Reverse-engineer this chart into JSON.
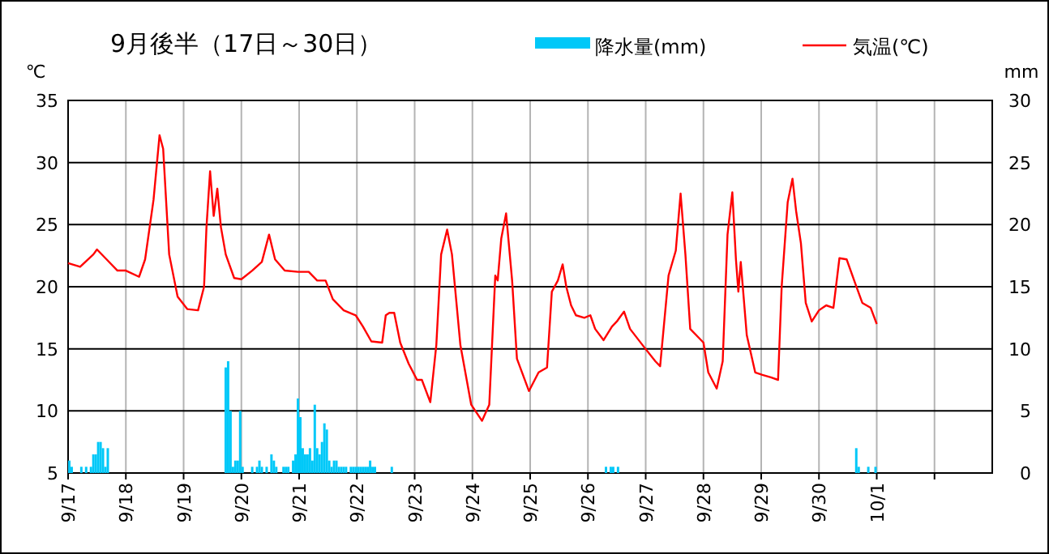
{
  "chart_data": {
    "type": "line",
    "title": "9月後半（17日～30日）",
    "ylabel": "℃",
    "y2label": "mm",
    "legend": "top",
    "grid": true,
    "xlim": [
      "--09-17",
      "--10-03"
    ],
    "xticks": [
      {
        "value": "--09-17",
        "label": "9/17"
      },
      {
        "value": "--09-18",
        "label": "9/18"
      },
      {
        "value": "--09-19",
        "label": "9/19"
      },
      {
        "value": "--09-20",
        "label": "9/20"
      },
      {
        "value": "--09-21",
        "label": "9/21"
      },
      {
        "value": "--09-22",
        "label": "9/22"
      },
      {
        "value": "--09-23",
        "label": "9/23"
      },
      {
        "value": "--09-24",
        "label": "9/24"
      },
      {
        "value": "--09-25",
        "label": "9/25"
      },
      {
        "value": "--09-26",
        "label": "9/26"
      },
      {
        "value": "--09-27",
        "label": "9/27"
      },
      {
        "value": "--09-28",
        "label": "9/28"
      },
      {
        "value": "--09-29",
        "label": "9/29"
      },
      {
        "value": "--09-30",
        "label": "9/30"
      },
      {
        "value": "--10-01",
        "label": "10/1"
      },
      {
        "value": "--10-02",
        "label": null
      }
    ],
    "ylim": [
      5,
      35
    ],
    "yticks": [
      5,
      10,
      15,
      20,
      25,
      30,
      35
    ],
    "y2lim": [
      0,
      30
    ],
    "y2ticks": [
      0,
      5,
      10,
      15,
      20,
      25,
      30
    ],
    "series": [
      {
        "name": "降水量(mm)",
        "type": "bar",
        "axis": "y2",
        "color": "#00c8f8",
        "x": [
          "--09-17T00:00",
          "--09-17T01:00",
          "--09-17T05:00",
          "--09-17T07:00",
          "--09-17T09:00",
          "--09-17T10:00",
          "--09-17T11:00",
          "--09-17T12:00",
          "--09-17T13:00",
          "--09-17T14:00",
          "--09-17T15:00",
          "--09-17T16:00",
          "--09-19T17:00",
          "--09-19T18:00",
          "--09-19T19:00",
          "--09-19T20:00",
          "--09-19T21:00",
          "--09-19T22:00",
          "--09-19T23:00",
          "--09-20T00:00",
          "--09-20T04:00",
          "--09-20T06:00",
          "--09-20T07:00",
          "--09-20T08:00",
          "--09-20T10:00",
          "--09-20T12:00",
          "--09-20T13:00",
          "--09-20T14:00",
          "--09-20T17:00",
          "--09-20T18:00",
          "--09-20T19:00",
          "--09-20T21:00",
          "--09-20T22:00",
          "--09-20T23:00",
          "--09-21T00:00",
          "--09-21T01:00",
          "--09-21T02:00",
          "--09-21T03:00",
          "--09-21T04:00",
          "--09-21T05:00",
          "--09-21T06:00",
          "--09-21T07:00",
          "--09-21T08:00",
          "--09-21T09:00",
          "--09-21T10:00",
          "--09-21T11:00",
          "--09-21T12:00",
          "--09-21T13:00",
          "--09-21T14:00",
          "--09-21T15:00",
          "--09-21T16:00",
          "--09-21T17:00",
          "--09-21T18:00",
          "--09-21T19:00",
          "--09-21T21:00",
          "--09-21T22:00",
          "--09-21T23:00",
          "--09-22T00:00",
          "--09-22T01:00",
          "--09-22T02:00",
          "--09-22T03:00",
          "--09-22T04:00",
          "--09-22T05:00",
          "--09-22T06:00",
          "--09-22T07:00",
          "--09-22T14:00",
          "--09-26T07:00",
          "--09-26T09:00",
          "--09-26T10:00",
          "--09-26T12:00",
          "--09-30T15:00",
          "--09-30T16:00",
          "--09-30T20:00",
          "--09-30T23:00"
        ],
        "values": [
          1.0,
          0.5,
          0.5,
          0.5,
          0.5,
          1.5,
          1.5,
          2.5,
          2.5,
          2.0,
          0.5,
          2.0,
          8.5,
          9.0,
          5.0,
          0.5,
          1.0,
          1.0,
          5.0,
          0.5,
          0.5,
          0.5,
          1.0,
          0.5,
          0.5,
          1.5,
          1.0,
          0.5,
          0.5,
          0.5,
          0.5,
          1.0,
          1.5,
          6.0,
          4.5,
          2.0,
          1.5,
          1.5,
          2.0,
          1.0,
          5.5,
          2.0,
          1.5,
          2.5,
          4.0,
          3.5,
          1.0,
          0.5,
          1.0,
          1.0,
          0.5,
          0.5,
          0.5,
          0.5,
          0.5,
          0.5,
          0.5,
          0.5,
          0.5,
          0.5,
          0.5,
          0.5,
          1.0,
          0.5,
          0.5,
          0.5,
          0.5,
          0.5,
          0.5,
          0.5,
          2.0,
          0.5,
          0.5,
          0.5
        ]
      },
      {
        "name": "気温(℃)",
        "axis": "y",
        "color": "#ff0000",
        "x": [
          "--09-17T00:00",
          "--09-17T05:00",
          "--09-17T10:30",
          "--09-17T12:00",
          "--09-17T16:00",
          "--09-17T20:30",
          "--09-18T00:00",
          "--09-18T05:30",
          "--09-18T08:00",
          "--09-18T11:30",
          "--09-18T14:00",
          "--09-18T15:30",
          "--09-18T18:00",
          "--09-18T21:30",
          "--09-19T01:30",
          "--09-19T06:00",
          "--09-19T08:30",
          "--09-19T09:30",
          "--09-19T11:00",
          "--09-19T12:30",
          "--09-19T14:00",
          "--09-19T15:30",
          "--09-19T17:30",
          "--09-19T21:00",
          "--09-20T00:00",
          "--09-20T04:30",
          "--09-20T08:30",
          "--09-20T11:30",
          "--09-20T14:00",
          "--09-20T18:00",
          "--09-20T23:30",
          "--09-21T04:00",
          "--09-21T07:30",
          "--09-21T11:00",
          "--09-21T14:00",
          "--09-21T18:30",
          "--09-21T23:30",
          "--09-22T02:30",
          "--09-22T06:00",
          "--09-22T10:30",
          "--09-22T12:00",
          "--09-22T13:30",
          "--09-22T15:30",
          "--09-22T18:00",
          "--09-22T21:30",
          "--09-23T01:00",
          "--09-23T03:00",
          "--09-23T06:30",
          "--09-23T09:00",
          "--09-23T11:00",
          "--09-23T13:30",
          "--09-23T15:30",
          "--09-23T19:00",
          "--09-23T23:30",
          "--09-24T04:00",
          "--09-24T07:00",
          "--09-24T09:30",
          "--09-24T10:30",
          "--09-24T12:00",
          "--09-24T14:00",
          "--09-24T16:30",
          "--09-24T18:30",
          "--09-24T23:30",
          "--09-25T03:30",
          "--09-25T07:00",
          "--09-25T09:00",
          "--09-25T11:30",
          "--09-25T13:30",
          "--09-25T15:00",
          "--09-25T17:00",
          "--09-25T19:00",
          "--09-25T22:30",
          "--09-26T01:00",
          "--09-26T03:00",
          "--09-26T06:30",
          "--09-26T10:00",
          "--09-26T12:00",
          "--09-26T15:00",
          "--09-26T17:30",
          "--09-26T23:30",
          "--09-27T04:00",
          "--09-27T06:00",
          "--09-27T09:30",
          "--09-27T12:30",
          "--09-27T14:30",
          "--09-27T16:30",
          "--09-27T18:30",
          "--09-28T00:00",
          "--09-28T02:00",
          "--09-28T05:30",
          "--09-28T08:00",
          "--09-28T10:00",
          "--09-28T12:00",
          "--09-28T13:30",
          "--09-28T14:30",
          "--09-28T15:30",
          "--09-28T18:00",
          "--09-28T21:30",
          "--09-29T00:30",
          "--09-29T04:00",
          "--09-29T07:00",
          "--09-29T08:30",
          "--09-29T11:00",
          "--09-29T13:00",
          "--09-29T14:30",
          "--09-29T16:30",
          "--09-29T18:30",
          "--09-29T21:00",
          "--09-30T00:00",
          "--09-30T03:00",
          "--09-30T06:00",
          "--09-30T08:30",
          "--09-30T11:30",
          "--09-30T15:00",
          "--09-30T18:00",
          "--09-30T21:30",
          "--10-01T00:00"
        ],
        "values": [
          21.9,
          21.6,
          22.6,
          23.0,
          22.2,
          21.3,
          21.3,
          20.8,
          22.2,
          27.0,
          32.2,
          31.1,
          22.6,
          19.2,
          18.2,
          18.1,
          20.0,
          24.8,
          29.3,
          25.7,
          27.9,
          24.8,
          22.6,
          20.7,
          20.6,
          21.3,
          22.0,
          24.2,
          22.2,
          21.3,
          21.2,
          21.2,
          20.5,
          20.5,
          19.0,
          18.1,
          17.7,
          16.8,
          15.6,
          15.5,
          17.7,
          17.9,
          17.9,
          15.5,
          13.8,
          12.5,
          12.5,
          10.7,
          15.3,
          22.6,
          24.6,
          22.6,
          15.3,
          10.5,
          9.2,
          10.5,
          20.9,
          20.5,
          23.9,
          25.9,
          20.5,
          14.2,
          11.6,
          13.1,
          13.5,
          19.6,
          20.5,
          21.8,
          20.0,
          18.5,
          17.7,
          17.5,
          17.7,
          16.6,
          15.7,
          16.8,
          17.2,
          18.0,
          16.6,
          15.1,
          14.0,
          13.6,
          20.9,
          22.9,
          27.5,
          22.6,
          16.6,
          15.5,
          13.1,
          11.8,
          14.0,
          24.2,
          27.6,
          22.2,
          19.6,
          22.0,
          16.1,
          13.1,
          12.9,
          12.7,
          12.5,
          20.0,
          26.8,
          28.7,
          26.1,
          23.5,
          18.7,
          17.2,
          18.1,
          18.5,
          18.3,
          22.3,
          22.2,
          20.3,
          18.7,
          18.3,
          17.0
        ]
      }
    ]
  }
}
